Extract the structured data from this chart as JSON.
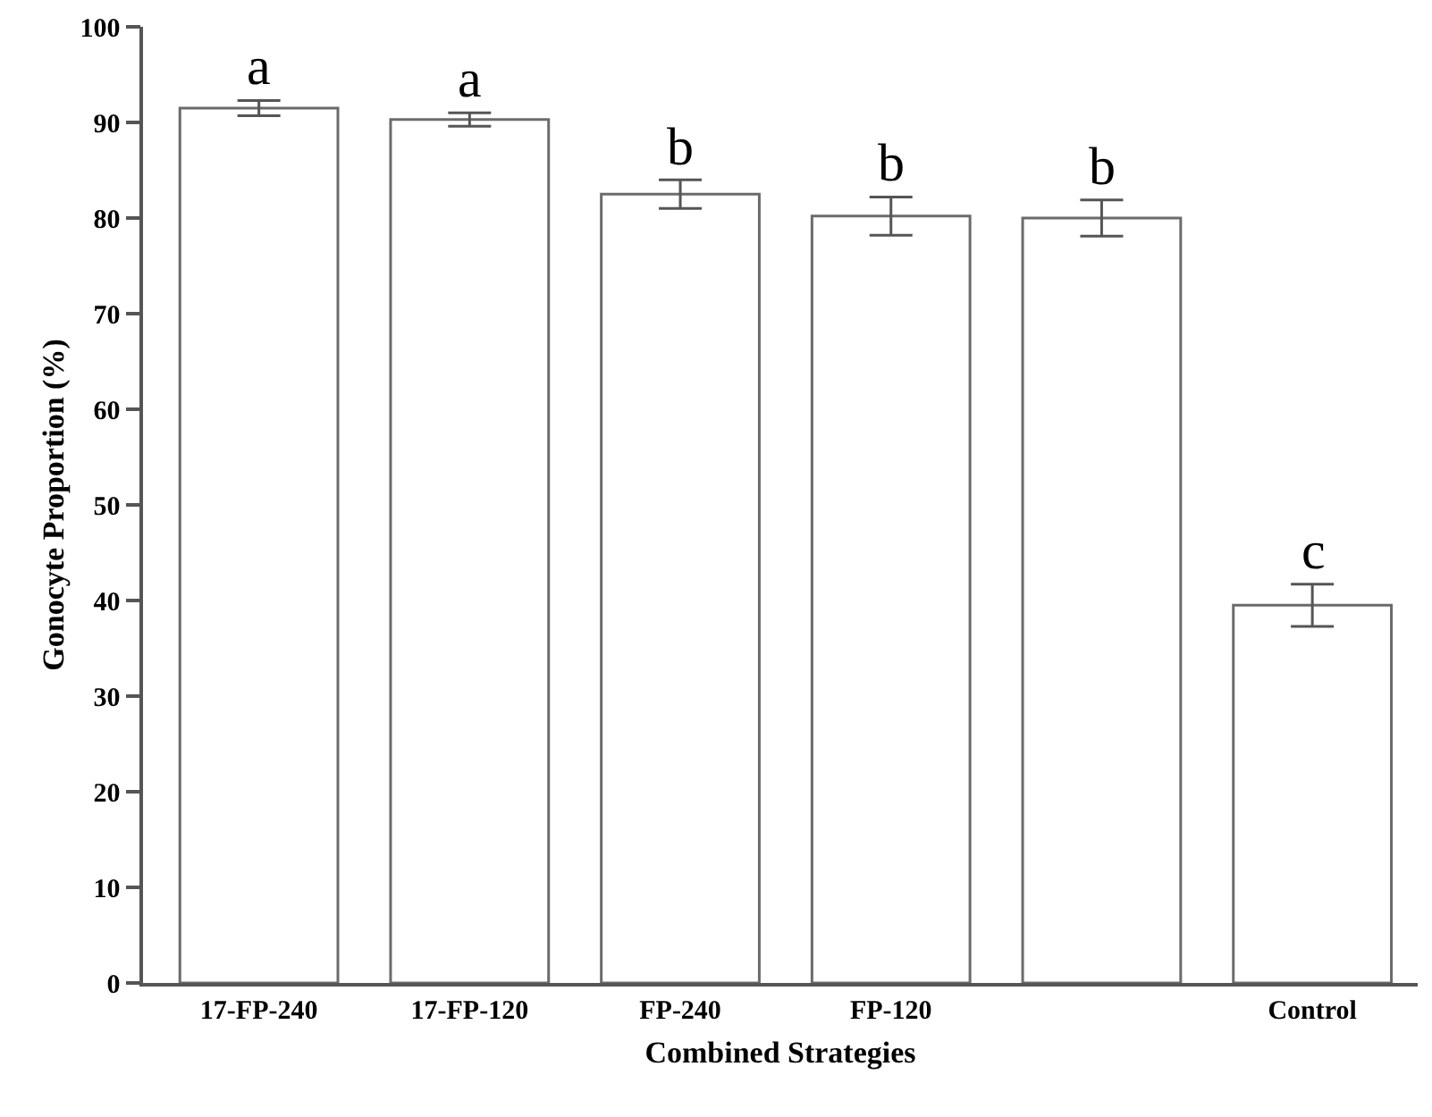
{
  "chart_data": {
    "type": "bar",
    "xlabel": "Combined Strategies",
    "ylabel": "Gonocyte Proportion (%)",
    "categories": [
      "17-FP-240",
      "17-FP-120",
      "FP-240",
      "FP-120",
      null,
      "Control"
    ],
    "values": [
      91.5,
      90.3,
      82.5,
      80.2,
      80,
      39.5
    ],
    "errors": [
      0.8,
      0.7,
      1.5,
      2,
      1.9,
      2.2
    ],
    "value_labels": [
      "a",
      "a",
      "b",
      "b",
      "b",
      "c"
    ],
    "color": "#ffffff",
    "ylim": [
      0,
      100
    ],
    "yticks": [
      0,
      10,
      20,
      30,
      40,
      50,
      60,
      70,
      80,
      90,
      100
    ],
    "grid": false
  }
}
